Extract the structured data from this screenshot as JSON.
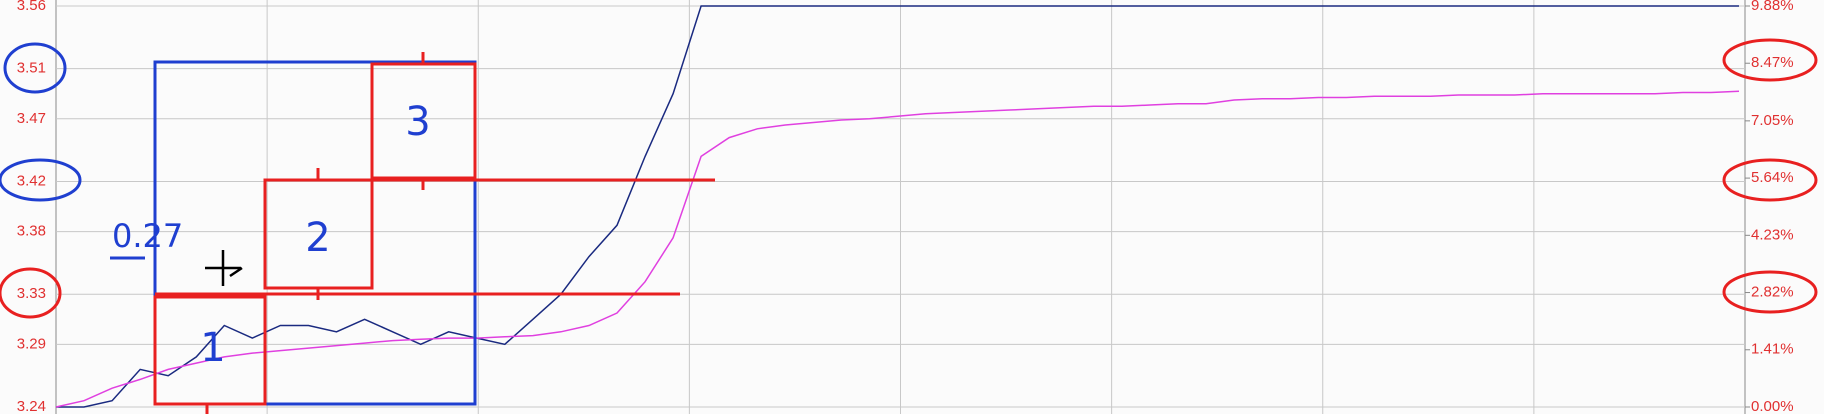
{
  "chart_data": {
    "type": "line",
    "series": [
      {
        "color": "#1a2a80",
        "values": [
          3.24,
          3.24,
          3.245,
          3.27,
          3.265,
          3.28,
          3.305,
          3.295,
          3.305,
          3.305,
          3.3,
          3.31,
          3.3,
          3.29,
          3.3,
          3.295,
          3.29,
          3.31,
          3.33,
          3.36,
          3.385,
          3.44,
          3.49,
          3.56,
          3.56,
          3.56,
          3.56,
          3.56,
          3.56,
          3.56,
          3.56,
          3.56,
          3.56,
          3.56,
          3.56,
          3.56,
          3.56,
          3.56,
          3.56,
          3.56,
          3.56,
          3.56,
          3.56,
          3.56,
          3.56,
          3.56,
          3.56,
          3.56,
          3.56,
          3.56,
          3.56,
          3.56,
          3.56,
          3.56,
          3.56,
          3.56,
          3.56,
          3.56,
          3.56,
          3.56,
          3.56
        ]
      },
      {
        "color": "#e040e0",
        "values": [
          3.24,
          3.245,
          3.255,
          3.262,
          3.27,
          3.275,
          3.28,
          3.283,
          3.285,
          3.287,
          3.289,
          3.291,
          3.293,
          3.294,
          3.295,
          3.295,
          3.296,
          3.297,
          3.3,
          3.305,
          3.315,
          3.34,
          3.375,
          3.44,
          3.455,
          3.462,
          3.465,
          3.467,
          3.469,
          3.47,
          3.472,
          3.474,
          3.475,
          3.476,
          3.477,
          3.478,
          3.479,
          3.48,
          3.48,
          3.481,
          3.482,
          3.482,
          3.485,
          3.486,
          3.486,
          3.487,
          3.487,
          3.488,
          3.488,
          3.488,
          3.489,
          3.489,
          3.489,
          3.49,
          3.49,
          3.49,
          3.49,
          3.49,
          3.491,
          3.491,
          3.492
        ]
      }
    ],
    "ylim": [
      3.24,
      3.56
    ],
    "yticks": [
      3.24,
      3.29,
      3.33,
      3.38,
      3.42,
      3.47,
      3.51,
      3.56
    ],
    "y2lim": [
      0,
      9.88
    ],
    "y2ticks": [
      {
        "value": 0,
        "label": "0.00%"
      },
      {
        "value": 1.41,
        "label": "1.41%"
      },
      {
        "value": 2.82,
        "label": "2.82%"
      },
      {
        "value": 4.23,
        "label": "4.23%"
      },
      {
        "value": 5.64,
        "label": "5.64%"
      },
      {
        "value": 7.05,
        "label": "7.05%"
      },
      {
        "value": 8.47,
        "label": "8.47%"
      },
      {
        "value": 9.88,
        "label": "9.88%"
      }
    ],
    "grid": true,
    "annotations": [
      "1",
      "2",
      "3",
      "0.27"
    ]
  }
}
